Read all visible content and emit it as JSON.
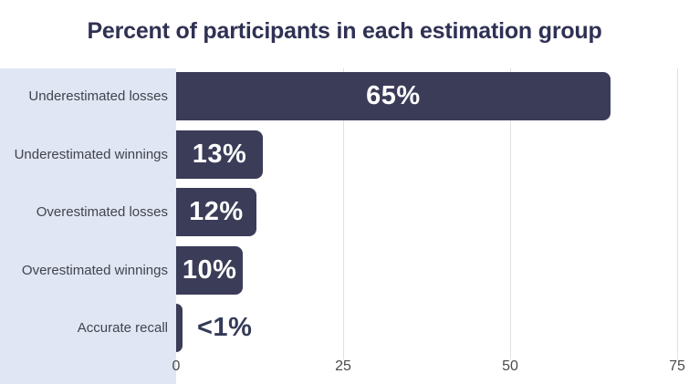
{
  "chart_data": {
    "type": "bar",
    "orientation": "horizontal",
    "title": "Percent of participants in each estimation group",
    "categories": [
      "Underestimated losses",
      "Underestimated winnings",
      "Overestimated losses",
      "Overestimated winnings",
      "Accurate recall"
    ],
    "values": [
      65,
      13,
      12,
      10,
      0.5
    ],
    "value_labels": [
      "65%",
      "13%",
      "12%",
      "10%",
      "<1%"
    ],
    "xlabel": "",
    "ylabel": "",
    "xlim": [
      0,
      75
    ],
    "x_ticks": [
      "0",
      "25",
      "50",
      "75"
    ],
    "x_tick_values": [
      0,
      25,
      50,
      75
    ],
    "grid": "vertical",
    "legend": "none"
  },
  "colors": {
    "bar": "#3a3c58",
    "panel": "#e0e6f3",
    "title": "#2f3154",
    "cat": "#41444e",
    "tick": "#4a4a4a",
    "grid": "#e1e1e1",
    "val_in": "#ffffff",
    "val_out": "#343a57"
  }
}
